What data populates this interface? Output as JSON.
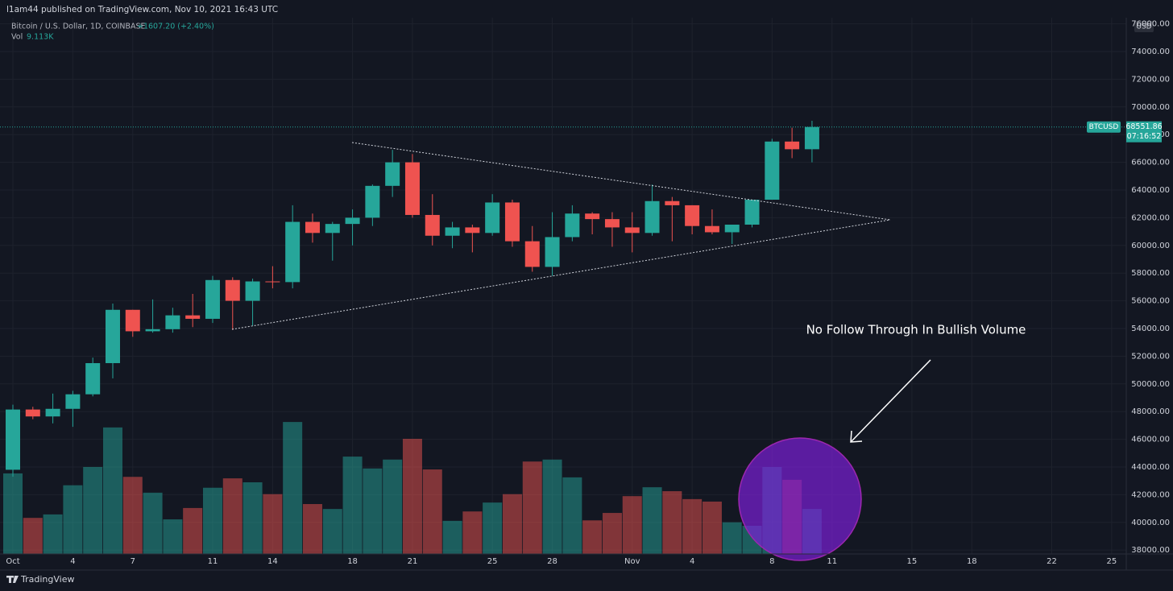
{
  "header": {
    "publisher": "l1am44 published on TradingView.com, Nov 10, 2021 16:43 UTC"
  },
  "chart_data": {
    "type": "candlestick",
    "symbol": "Bitcoin / U.S. Dollar, 1D, COINBASE",
    "change": "+1607.20 (+2.40%)",
    "volume_label": "Vol",
    "volume_value": "9.113K",
    "currency": "USD",
    "price_tag": {
      "name": "BTCUSD",
      "value": 68551.86,
      "countdown": "07:16:52"
    },
    "annotation": "No Follow Through In Bullish Volume",
    "up_color": "#26a69a",
    "down_color": "#ef5350",
    "x": [
      0,
      1,
      2,
      3,
      4,
      5,
      6,
      7,
      8,
      9,
      10,
      11,
      12,
      13,
      14,
      15,
      16,
      17,
      18,
      19,
      20,
      21,
      22,
      23,
      24,
      25,
      26,
      27,
      28,
      29,
      30,
      31,
      32,
      33,
      34,
      35,
      36,
      37,
      38,
      39,
      40
    ],
    "open": [
      43800,
      48150,
      47650,
      48200,
      49250,
      51500,
      55350,
      53800,
      53950,
      54950,
      54700,
      57500,
      56000,
      57400,
      57350,
      61700,
      60900,
      61550,
      62000,
      64300,
      66000,
      62200,
      60700,
      61300,
      60900,
      63100,
      60300,
      58450,
      60600,
      62300,
      61900,
      61300,
      60900,
      63200,
      62900,
      61400,
      60950,
      61500,
      63300,
      67500,
      66944.66
    ],
    "high": [
      48500,
      48350,
      49300,
      49500,
      51900,
      55800,
      55350,
      56100,
      55500,
      56500,
      57800,
      57700,
      57600,
      58500,
      62900,
      62300,
      61700,
      62600,
      64400,
      66900,
      66600,
      63700,
      61700,
      61500,
      63700,
      63300,
      61400,
      62400,
      62900,
      62400,
      62400,
      62400,
      64400,
      63500,
      62900,
      62600,
      61500,
      63300,
      67700,
      68500,
      69000
    ],
    "low": [
      43300,
      47450,
      47150,
      46900,
      49100,
      50400,
      53400,
      53700,
      53700,
      54100,
      54400,
      53900,
      54200,
      56900,
      56900,
      60200,
      58900,
      60000,
      61400,
      63500,
      62000,
      60000,
      59800,
      59500,
      60700,
      59900,
      58100,
      57800,
      60300,
      60800,
      59900,
      59500,
      60700,
      60300,
      60800,
      60800,
      60100,
      61300,
      63300,
      66300,
      66000
    ],
    "close": [
      48150,
      47650,
      48200,
      49250,
      51500,
      55350,
      53800,
      53950,
      54950,
      54700,
      57500,
      56000,
      57400,
      57350,
      61700,
      60900,
      61550,
      62000,
      64300,
      66000,
      62200,
      60700,
      61300,
      60900,
      63100,
      60300,
      58450,
      60600,
      62300,
      61900,
      61300,
      60900,
      63200,
      62900,
      61400,
      60950,
      61500,
      63300,
      67500,
      66944.66,
      68551.86
    ],
    "volume": [
      16300,
      7300,
      8000,
      13900,
      17600,
      25600,
      15600,
      12400,
      7000,
      9300,
      13400,
      15300,
      14500,
      12100,
      26700,
      10100,
      9100,
      19700,
      17300,
      19100,
      23300,
      17100,
      6700,
      8600,
      10400,
      12100,
      18700,
      19100,
      15500,
      6800,
      8300,
      11700,
      13500,
      12700,
      11100,
      10600,
      6400,
      5700,
      17600,
      15000,
      9113
    ],
    "xlim": [
      -0.645,
      55.73
    ],
    "xticks": [
      {
        "value": 0,
        "label": "Oct"
      },
      {
        "value": 3,
        "label": "4"
      },
      {
        "value": 6,
        "label": "7"
      },
      {
        "value": 10,
        "label": "11"
      },
      {
        "value": 13,
        "label": "14"
      },
      {
        "value": 17,
        "label": "18"
      },
      {
        "value": 20,
        "label": "21"
      },
      {
        "value": 24,
        "label": "25"
      },
      {
        "value": 27,
        "label": "28"
      },
      {
        "value": 31,
        "label": "Nov"
      },
      {
        "value": 34,
        "label": "4"
      },
      {
        "value": 38,
        "label": "8"
      },
      {
        "value": 41,
        "label": "11"
      },
      {
        "value": 45,
        "label": "15"
      },
      {
        "value": 48,
        "label": "18"
      },
      {
        "value": 52,
        "label": "22"
      },
      {
        "value": 55,
        "label": "25"
      }
    ],
    "ylim": [
      37720,
      76442
    ],
    "yticks": [
      {
        "value": 38000,
        "label": "38000.00"
      },
      {
        "value": 40000,
        "label": "40000.00"
      },
      {
        "value": 42000,
        "label": "42000.00"
      },
      {
        "value": 44000,
        "label": "44000.00"
      },
      {
        "value": 46000,
        "label": "46000.00"
      },
      {
        "value": 48000,
        "label": "48000.00"
      },
      {
        "value": 50000,
        "label": "50000.00"
      },
      {
        "value": 52000,
        "label": "52000.00"
      },
      {
        "value": 54000,
        "label": "54000.00"
      },
      {
        "value": 56000,
        "label": "56000.00"
      },
      {
        "value": 58000,
        "label": "58000.00"
      },
      {
        "value": 60000,
        "label": "60000.00"
      },
      {
        "value": 62000,
        "label": "62000.00"
      },
      {
        "value": 64000,
        "label": "64000.00"
      },
      {
        "value": 66000,
        "label": "66000.00"
      },
      {
        "value": 68000,
        "label": "68000.00"
      },
      {
        "value": 70000,
        "label": "70000.00"
      },
      {
        "value": 72000,
        "label": "72000.00"
      },
      {
        "value": 74000,
        "label": "74000.00"
      },
      {
        "value": 76000,
        "label": "76000.00"
      }
    ],
    "vol_ylim": [
      0,
      108500
    ],
    "grid": true
  },
  "footer": {
    "brand": "TradingView"
  }
}
